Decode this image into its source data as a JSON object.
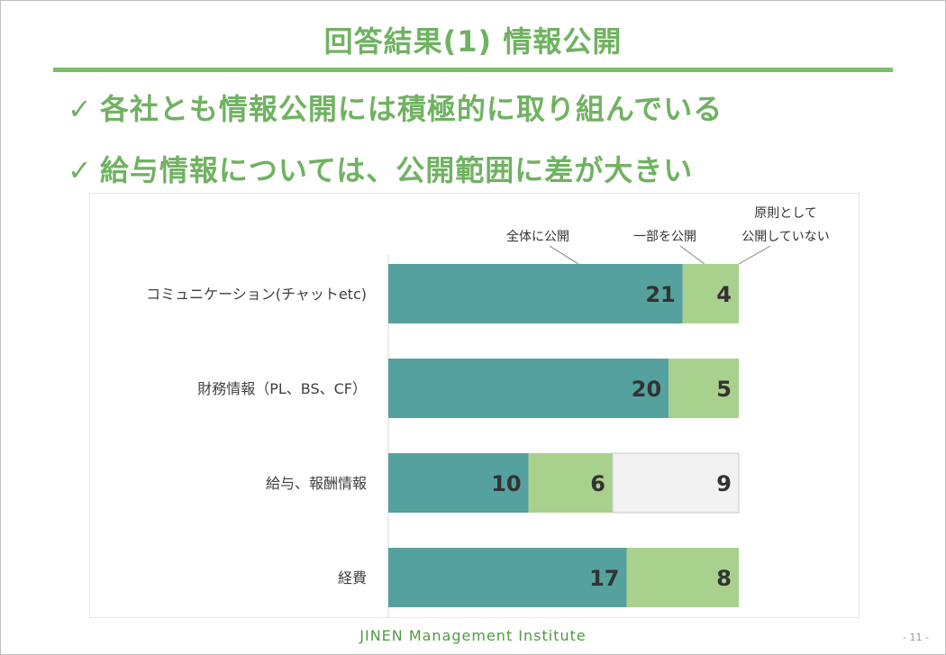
{
  "slide": {
    "title": "回答結果(1) 情報公開",
    "bullets": [
      "各社とも情報公開には積極的に取り組んでいる",
      "給与情報については、公開範囲に差が大きい"
    ],
    "check_icon": "✓",
    "footer": "JINEN Management Institute",
    "page_number": "- 11 -"
  },
  "chart_data": {
    "type": "bar",
    "orientation": "horizontal",
    "stacked": true,
    "categories": [
      "コミュニケーション(チャットetc)",
      "財務情報（PL、BS、CF）",
      "給与、報酬情報",
      "経費"
    ],
    "series": [
      {
        "name": "全体に公開",
        "values": [
          21,
          20,
          10,
          17
        ],
        "color": "#55a19d"
      },
      {
        "name": "一部を公開",
        "values": [
          4,
          5,
          6,
          8
        ],
        "color": "#a9d18e"
      },
      {
        "name": "原則として公開していない",
        "values": [
          0,
          0,
          9,
          0
        ],
        "color": "#f2f2f2"
      }
    ],
    "series_label_lines": [
      [
        "全体に公開"
      ],
      [
        "一部を公開"
      ],
      [
        "原則として",
        "公開していない"
      ]
    ],
    "xlim": [
      0,
      25
    ],
    "grid": false,
    "legend": "callouts-above-first-bar",
    "data_labels": true
  }
}
